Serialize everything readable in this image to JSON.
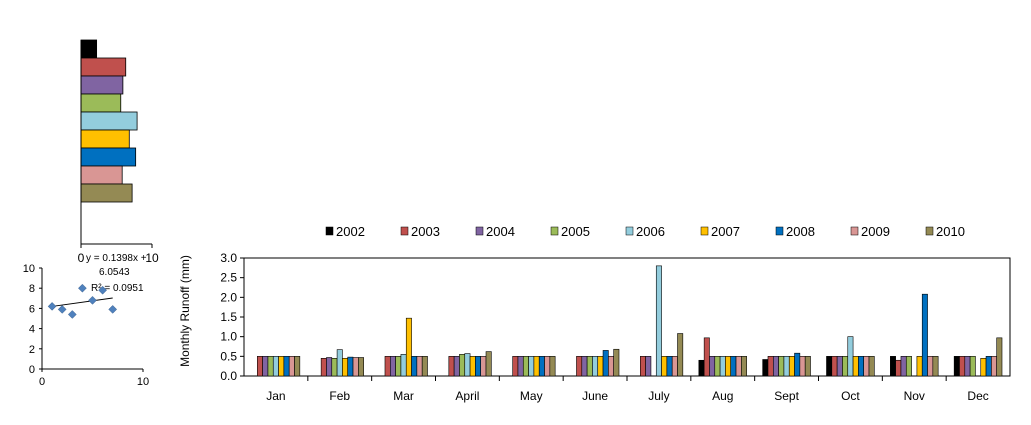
{
  "chart_data": [
    {
      "type": "bar",
      "orientation": "horizontal",
      "xlim": [
        0,
        10
      ],
      "x_ticks": [
        0,
        10
      ],
      "series_colors": [
        "#000000",
        "#c0504d",
        "#8064a2",
        "#9bbb59",
        "#93cddd",
        "#ffc000",
        "#0070c0",
        "#d99694",
        "#948a54"
      ],
      "values": [
        2.2,
        6.3,
        5.9,
        5.6,
        7.9,
        6.8,
        7.7,
        5.8,
        7.2
      ]
    },
    {
      "type": "scatter",
      "xlim": [
        0,
        10
      ],
      "ylim": [
        0,
        10
      ],
      "x_ticks": [
        0,
        10
      ],
      "y_ticks": [
        0,
        2,
        4,
        6,
        8,
        10
      ],
      "points": [
        [
          1,
          6.2
        ],
        [
          2,
          5.9
        ],
        [
          3,
          5.4
        ],
        [
          4,
          8.0
        ],
        [
          5,
          6.8
        ],
        [
          6,
          7.8
        ],
        [
          7,
          5.9
        ]
      ],
      "trendline": {
        "slope": 0.1398,
        "intercept": 6.0543
      },
      "annotation": {
        "line1": "y = 0.1398x +",
        "line2": "6.0543",
        "line3": "R² = 0.0951"
      },
      "marker_color": "#4f81bd"
    },
    {
      "type": "bar",
      "ylabel": "Monthly  Runoff (mm)",
      "ylim": [
        0,
        3.0
      ],
      "y_ticks": [
        "0.0",
        "0.5",
        "1.0",
        "1.5",
        "2.0",
        "2.5",
        "3.0"
      ],
      "legend_position": "top",
      "categories": [
        "Jan",
        "Feb",
        "Mar",
        "April",
        "May",
        "June",
        "July",
        "Aug",
        "Sept",
        "Oct",
        "Nov",
        "Dec"
      ],
      "series": [
        {
          "name": "2002",
          "color": "#000000",
          "values": [
            0,
            0,
            0,
            0,
            0,
            0,
            0,
            0.4,
            0.42,
            0.5,
            0.5,
            0.5
          ]
        },
        {
          "name": "2003",
          "color": "#c0504d",
          "values": [
            0.5,
            0.45,
            0.5,
            0.5,
            0.5,
            0.5,
            0.5,
            0.97,
            0.5,
            0.5,
            0.4,
            0.5
          ]
        },
        {
          "name": "2004",
          "color": "#8064a2",
          "values": [
            0.5,
            0.47,
            0.5,
            0.5,
            0.5,
            0.5,
            0.5,
            0.5,
            0.5,
            0.5,
            0.5,
            0.5
          ]
        },
        {
          "name": "2005",
          "color": "#9bbb59",
          "values": [
            0.5,
            0.45,
            0.5,
            0.55,
            0.5,
            0.5,
            0,
            0.5,
            0.5,
            0.5,
            0.5,
            0.5
          ]
        },
        {
          "name": "2006",
          "color": "#93cddd",
          "values": [
            0.5,
            0.67,
            0.55,
            0.57,
            0.5,
            0.5,
            2.8,
            0.5,
            0.5,
            1.0,
            0,
            0
          ]
        },
        {
          "name": "2007",
          "color": "#ffc000",
          "values": [
            0.5,
            0.45,
            1.47,
            0.5,
            0.5,
            0.5,
            0.5,
            0.5,
            0.5,
            0.5,
            0.5,
            0.45
          ]
        },
        {
          "name": "2008",
          "color": "#0070c0",
          "values": [
            0.5,
            0.48,
            0.5,
            0.5,
            0.5,
            0.65,
            0.5,
            0.5,
            0.58,
            0.5,
            2.08,
            0.5
          ]
        },
        {
          "name": "2009",
          "color": "#d99694",
          "values": [
            0.5,
            0.47,
            0.5,
            0.5,
            0.5,
            0.5,
            0.5,
            0.5,
            0.5,
            0.5,
            0.5,
            0.5
          ]
        },
        {
          "name": "2010",
          "color": "#948a54",
          "values": [
            0.5,
            0.47,
            0.5,
            0.62,
            0.5,
            0.68,
            1.08,
            0.5,
            0.5,
            0.5,
            0.5,
            0.97
          ]
        }
      ]
    }
  ]
}
